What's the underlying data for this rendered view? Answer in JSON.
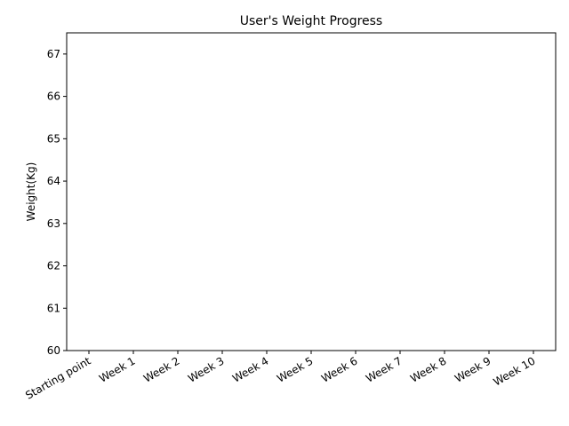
{
  "chart_data": {
    "type": "line",
    "title": "User's Weight Progress",
    "y_label": "Weight(Kg)",
    "categories": [
      "Starting point",
      "Week 1",
      "Week 2",
      "Week 3",
      "Week 4",
      "Week 5",
      "Week 6",
      "Week 7",
      "Week 8",
      "Week 9",
      "Week 10"
    ],
    "values": [
      null,
      null,
      null,
      null,
      null,
      null,
      null,
      null,
      null,
      null,
      null
    ],
    "ylim": [
      60,
      67.5
    ],
    "yticks": [
      60,
      61,
      62,
      63,
      64,
      65,
      66,
      67
    ]
  }
}
